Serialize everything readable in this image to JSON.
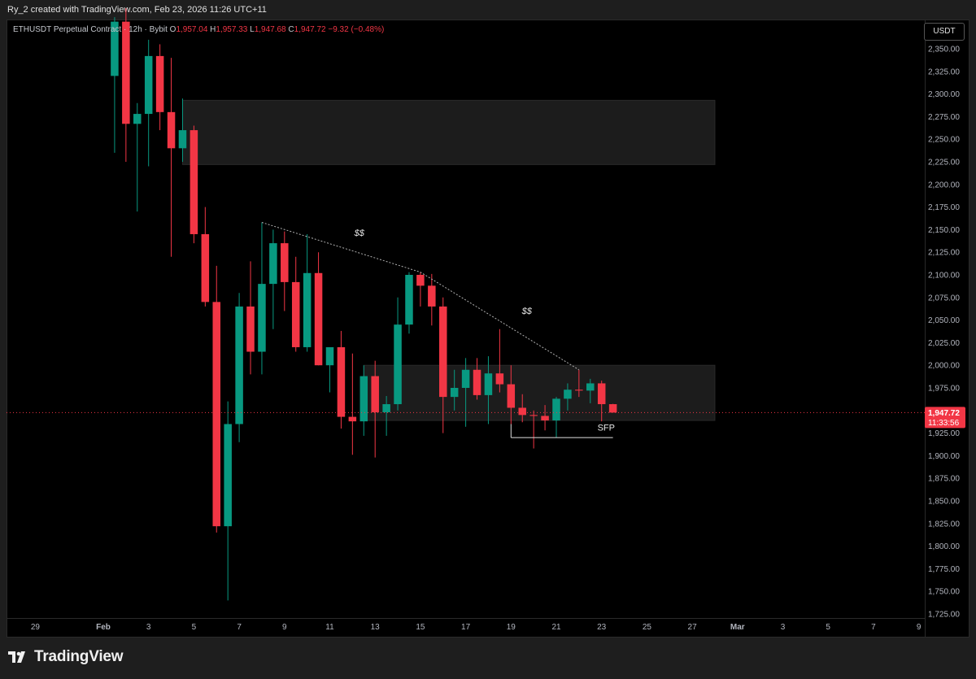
{
  "attribution": "Ry_2 created with TradingView.com, Feb 23, 2026 11:26 UTC+11",
  "legend": {
    "symbol": "ETHUSDT Perpetual Contract · 12h · Bybit",
    "o_label": "O",
    "o_value": "1,957.04",
    "h_label": "H",
    "h_value": "1,957.33",
    "l_label": "L",
    "l_value": "1,947.68",
    "c_label": "C",
    "c_value": "1,947.72",
    "change": "−9.32 (−0.48%)"
  },
  "currency_button": "USDT",
  "branding": "TradingView",
  "current_price": {
    "label": "1,947.72",
    "countdown": "11:33:56",
    "color": "#f23645"
  },
  "colors": {
    "up": "#089981",
    "down": "#f23645",
    "background": "#000000"
  },
  "chart_data": {
    "type": "candlestick",
    "price_axis": {
      "min": 1725,
      "max": 2350,
      "ticks": [
        "2,350.00",
        "2,325.00",
        "2,300.00",
        "2,275.00",
        "2,250.00",
        "2,225.00",
        "2,200.00",
        "2,175.00",
        "2,150.00",
        "2,125.00",
        "2,100.00",
        "2,075.00",
        "2,050.00",
        "2,025.00",
        "2,000.00",
        "1,975.00",
        "1,925.00",
        "1,900.00",
        "1,875.00",
        "1,850.00",
        "1,825.00",
        "1,800.00",
        "1,775.00",
        "1,750.00",
        "1,725.00"
      ]
    },
    "time_axis": {
      "ticks": [
        {
          "label": "29",
          "day": -2
        },
        {
          "label": "Feb",
          "day": 1
        },
        {
          "label": "3",
          "day": 3
        },
        {
          "label": "5",
          "day": 5
        },
        {
          "label": "7",
          "day": 7
        },
        {
          "label": "9",
          "day": 9
        },
        {
          "label": "11",
          "day": 11
        },
        {
          "label": "13",
          "day": 13
        },
        {
          "label": "15",
          "day": 15
        },
        {
          "label": "17",
          "day": 17
        },
        {
          "label": "19",
          "day": 19
        },
        {
          "label": "21",
          "day": 21
        },
        {
          "label": "23",
          "day": 23
        },
        {
          "label": "25",
          "day": 25
        },
        {
          "label": "27",
          "day": 27
        },
        {
          "label": "Mar",
          "day": 29
        },
        {
          "label": "3",
          "day": 31
        },
        {
          "label": "5",
          "day": 33
        },
        {
          "label": "7",
          "day": 35
        },
        {
          "label": "9",
          "day": 37
        }
      ]
    },
    "candles": [
      {
        "t": 1.5,
        "o": 2320,
        "h": 2385,
        "l": 2235,
        "c": 2380
      },
      {
        "t": 2.0,
        "o": 2380,
        "h": 2395,
        "l": 2225,
        "c": 2267
      },
      {
        "t": 2.5,
        "o": 2267,
        "h": 2290,
        "l": 2170,
        "c": 2278
      },
      {
        "t": 3.0,
        "o": 2278,
        "h": 2360,
        "l": 2220,
        "c": 2342
      },
      {
        "t": 3.5,
        "o": 2342,
        "h": 2355,
        "l": 2260,
        "c": 2280
      },
      {
        "t": 4.0,
        "o": 2280,
        "h": 2340,
        "l": 2120,
        "c": 2240
      },
      {
        "t": 4.5,
        "o": 2240,
        "h": 2295,
        "l": 2225,
        "c": 2260
      },
      {
        "t": 5.0,
        "o": 2260,
        "h": 2265,
        "l": 2135,
        "c": 2145
      },
      {
        "t": 5.5,
        "o": 2145,
        "h": 2175,
        "l": 2065,
        "c": 2070
      },
      {
        "t": 6.0,
        "o": 2070,
        "h": 2110,
        "l": 1815,
        "c": 1822
      },
      {
        "t": 6.5,
        "o": 1822,
        "h": 1960,
        "l": 1740,
        "c": 1935
      },
      {
        "t": 7.0,
        "o": 1935,
        "h": 2080,
        "l": 1915,
        "c": 2065
      },
      {
        "t": 7.5,
        "o": 2065,
        "h": 2115,
        "l": 1990,
        "c": 2015
      },
      {
        "t": 8.0,
        "o": 2015,
        "h": 2158,
        "l": 1990,
        "c": 2090
      },
      {
        "t": 8.5,
        "o": 2090,
        "h": 2150,
        "l": 2040,
        "c": 2135
      },
      {
        "t": 9.0,
        "o": 2135,
        "h": 2148,
        "l": 2060,
        "c": 2092
      },
      {
        "t": 9.5,
        "o": 2092,
        "h": 2120,
        "l": 2015,
        "c": 2020
      },
      {
        "t": 10.0,
        "o": 2020,
        "h": 2145,
        "l": 2015,
        "c": 2102
      },
      {
        "t": 10.5,
        "o": 2102,
        "h": 2125,
        "l": 2000,
        "c": 2000
      },
      {
        "t": 11.0,
        "o": 2000,
        "h": 2015,
        "l": 1970,
        "c": 2020
      },
      {
        "t": 11.5,
        "o": 2020,
        "h": 2038,
        "l": 1930,
        "c": 1943
      },
      {
        "t": 12.0,
        "o": 1943,
        "h": 2013,
        "l": 1901,
        "c": 1938
      },
      {
        "t": 12.5,
        "o": 1938,
        "h": 2000,
        "l": 1922,
        "c": 1988
      },
      {
        "t": 13.0,
        "o": 1988,
        "h": 2005,
        "l": 1898,
        "c": 1948
      },
      {
        "t": 13.5,
        "o": 1948,
        "h": 1966,
        "l": 1922,
        "c": 1957
      },
      {
        "t": 14.0,
        "o": 1957,
        "h": 2075,
        "l": 1950,
        "c": 2045
      },
      {
        "t": 14.5,
        "o": 2045,
        "h": 2103,
        "l": 2035,
        "c": 2100
      },
      {
        "t": 15.0,
        "o": 2100,
        "h": 2103,
        "l": 2065,
        "c": 2088
      },
      {
        "t": 15.5,
        "o": 2088,
        "h": 2101,
        "l": 2044,
        "c": 2065
      },
      {
        "t": 16.0,
        "o": 2065,
        "h": 2075,
        "l": 1925,
        "c": 1965
      },
      {
        "t": 16.5,
        "o": 1965,
        "h": 1995,
        "l": 1950,
        "c": 1975
      },
      {
        "t": 17.0,
        "o": 1975,
        "h": 2008,
        "l": 1932,
        "c": 1995
      },
      {
        "t": 17.5,
        "o": 1995,
        "h": 2008,
        "l": 1962,
        "c": 1967
      },
      {
        "t": 18.0,
        "o": 1967,
        "h": 2010,
        "l": 1935,
        "c": 1991
      },
      {
        "t": 18.5,
        "o": 1991,
        "h": 2040,
        "l": 1970,
        "c": 1979
      },
      {
        "t": 19.0,
        "o": 1979,
        "h": 2000,
        "l": 1935,
        "c": 1953
      },
      {
        "t": 19.5,
        "o": 1953,
        "h": 1968,
        "l": 1937,
        "c": 1945
      },
      {
        "t": 20.0,
        "o": 1945,
        "h": 1950,
        "l": 1908,
        "c": 1944
      },
      {
        "t": 20.5,
        "o": 1944,
        "h": 1956,
        "l": 1928,
        "c": 1939
      },
      {
        "t": 21.0,
        "o": 1939,
        "h": 1965,
        "l": 1920,
        "c": 1963
      },
      {
        "t": 21.5,
        "o": 1963,
        "h": 1980,
        "l": 1950,
        "c": 1973
      },
      {
        "t": 22.0,
        "o": 1973,
        "h": 1995,
        "l": 1965,
        "c": 1972
      },
      {
        "t": 22.5,
        "o": 1972,
        "h": 1985,
        "l": 1958,
        "c": 1980
      },
      {
        "t": 23.0,
        "o": 1980,
        "h": 1983,
        "l": 1938,
        "c": 1957
      },
      {
        "t": 23.5,
        "o": 1957,
        "h": 1957.33,
        "l": 1947.68,
        "c": 1947.72
      }
    ],
    "zones": [
      {
        "name": "supply-zone",
        "t0": 4.5,
        "t1": 28.0,
        "p_top": 2293,
        "p_bottom": 2222
      },
      {
        "name": "range-zone",
        "t0": 12.5,
        "t1": 28.0,
        "p_top": 2000,
        "p_bottom": 1939
      }
    ],
    "trendline": {
      "points": [
        {
          "t": 8.0,
          "p": 2158
        },
        {
          "t": 15.0,
          "p": 2103
        },
        {
          "t": 22.0,
          "p": 1995
        }
      ]
    },
    "annotations": [
      {
        "text": "$$",
        "t": 12.3,
        "p": 2143
      },
      {
        "text": "$$",
        "t": 19.7,
        "p": 2057
      },
      {
        "text": "SFP",
        "t": 23.2,
        "p": 1928
      }
    ],
    "sfp_line": {
      "t0": 19.0,
      "t1": 23.5,
      "p": 1920,
      "tick_left": 1935
    }
  }
}
